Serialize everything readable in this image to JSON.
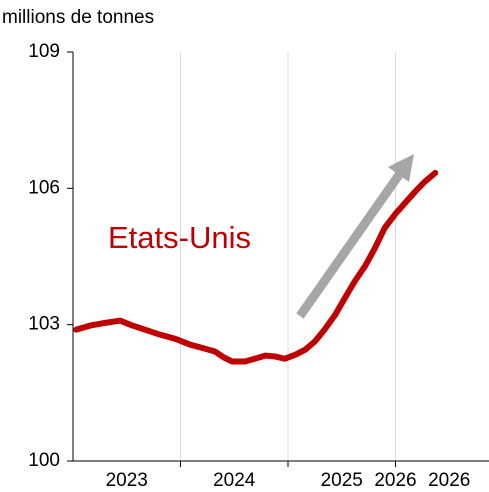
{
  "chart_data": {
    "type": "line",
    "ylabel": "millions de tonnes",
    "annotation": "Etats-Unis",
    "xlim": [
      2023,
      2026.87
    ],
    "ylim": [
      100,
      109
    ],
    "yticks": [
      100,
      103,
      106,
      109
    ],
    "xticks": [
      {
        "value": 2023.5,
        "label": "2023"
      },
      {
        "value": 2024.5,
        "label": "2024"
      },
      {
        "value": 2025.5,
        "label": "2025"
      },
      {
        "value": 2026.0,
        "label": "2026"
      },
      {
        "value": 2026.5,
        "label": "2026"
      }
    ],
    "xgrid": [
      2024,
      2025,
      2026
    ],
    "series": [
      {
        "name": "Etats-Unis",
        "color": "#c00000",
        "x": [
          2023.03,
          2023.16,
          2023.3,
          2023.44,
          2023.53,
          2023.67,
          2023.81,
          2023.95,
          2024.09,
          2024.23,
          2024.32,
          2024.41,
          2024.48,
          2024.6,
          2024.69,
          2024.79,
          2024.88,
          2024.97,
          2025.07,
          2025.16,
          2025.25,
          2025.34,
          2025.44,
          2025.53,
          2025.62,
          2025.72,
          2025.81,
          2025.9,
          2026.0,
          2026.09,
          2026.18,
          2026.27,
          2026.37
        ],
        "values": [
          102.89,
          102.98,
          103.04,
          103.09,
          103.0,
          102.89,
          102.78,
          102.69,
          102.56,
          102.47,
          102.41,
          102.27,
          102.19,
          102.19,
          102.25,
          102.32,
          102.3,
          102.25,
          102.34,
          102.45,
          102.63,
          102.89,
          103.22,
          103.59,
          103.95,
          104.3,
          104.69,
          105.13,
          105.44,
          105.68,
          105.92,
          106.14,
          106.34
        ]
      }
    ]
  }
}
